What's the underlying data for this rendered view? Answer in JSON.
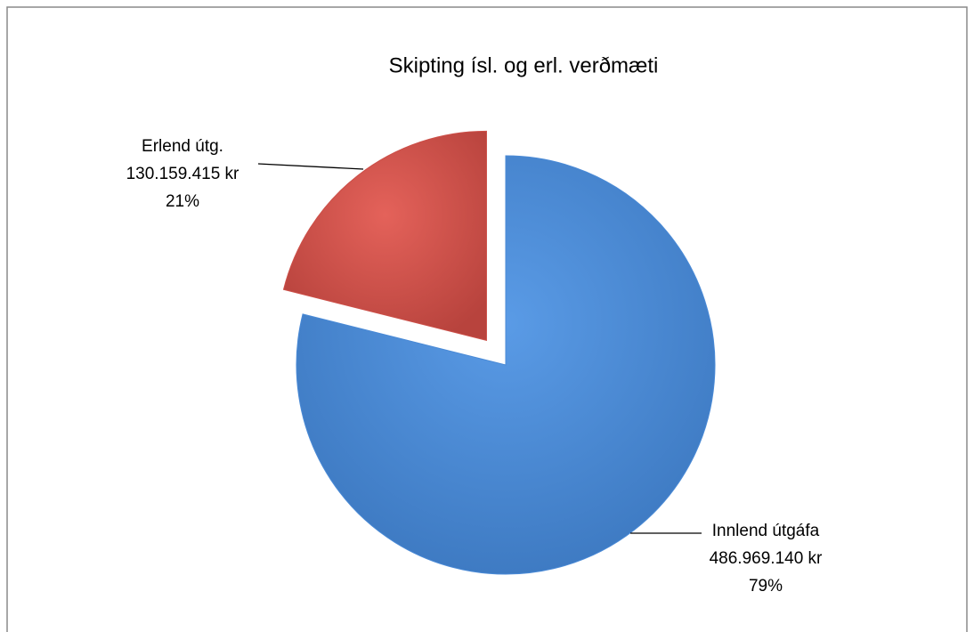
{
  "chart_data": {
    "type": "pie",
    "title": "Skipting ísl. og erl. verðmæti",
    "categories": [
      "Innlend útgáfa",
      "Erlend útg."
    ],
    "values": [
      486969140,
      130159415
    ],
    "value_labels": [
      "486.969.140 kr",
      "130.159.415 kr"
    ],
    "percentages": [
      79,
      21
    ],
    "percentage_labels": [
      "79%",
      "21%"
    ],
    "colors": [
      "#4a8ad6",
      "#cc4f48"
    ],
    "exploded": [
      false,
      true
    ]
  }
}
